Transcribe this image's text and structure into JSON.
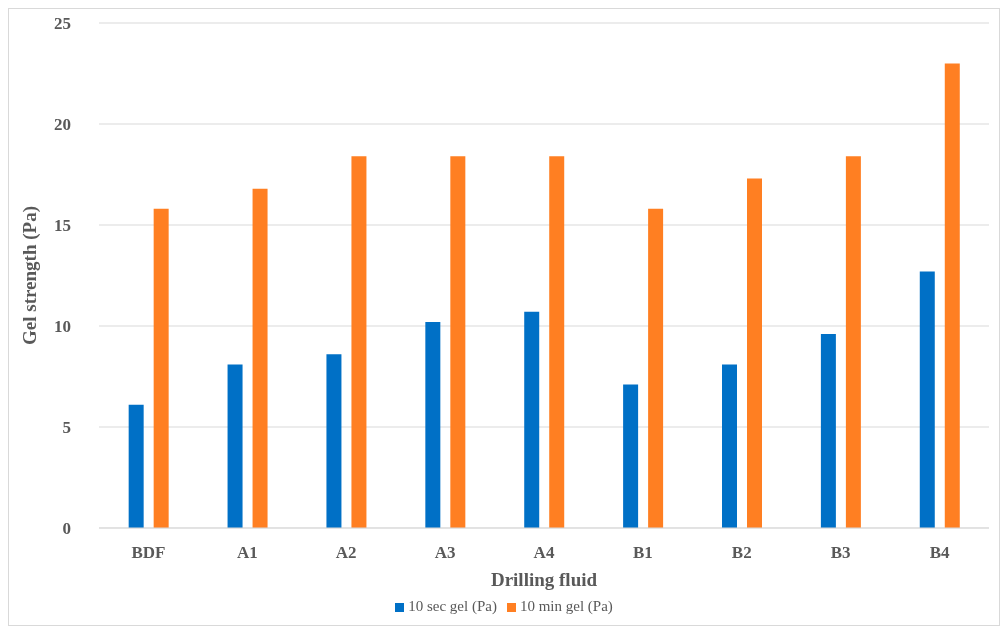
{
  "chart_data": {
    "type": "bar",
    "xlabel": "Drilling fluid",
    "ylabel": "Gel strength (Pa)",
    "categories": [
      "BDF",
      "A1",
      "A2",
      "A3",
      "A4",
      "B1",
      "B2",
      "B3",
      "B4"
    ],
    "series": [
      {
        "name": "10 sec gel (Pa)",
        "color": "#0070c6",
        "values": [
          6.1,
          8.1,
          8.6,
          10.2,
          10.7,
          7.1,
          8.1,
          9.6,
          12.7
        ]
      },
      {
        "name": "10 min gel (Pa)",
        "color": "#ff7f22",
        "values": [
          15.8,
          16.8,
          18.4,
          18.4,
          18.4,
          15.8,
          17.3,
          18.4,
          23.0
        ]
      }
    ],
    "ylim": [
      0,
      25
    ],
    "yticks": [
      0,
      5,
      10,
      15,
      20,
      25
    ],
    "grid": "y",
    "legend": "bottom"
  }
}
